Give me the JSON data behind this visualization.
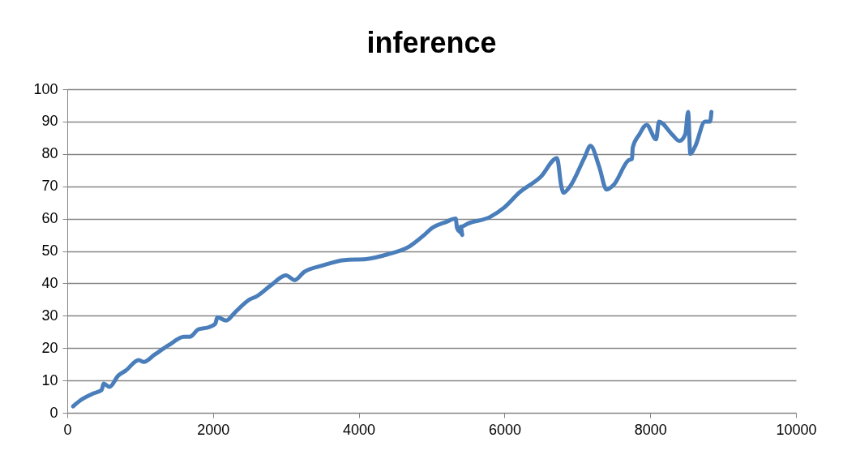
{
  "chart_data": {
    "type": "line",
    "title": "inference",
    "x": [
      80,
      190,
      360,
      470,
      500,
      580,
      700,
      800,
      980,
      1050,
      1200,
      1400,
      1600,
      1680,
      1800,
      1950,
      2030,
      2060,
      2180,
      2300,
      2500,
      2600,
      2800,
      3000,
      3120,
      3250,
      3500,
      3800,
      4100,
      4400,
      4700,
      4900,
      5000,
      5200,
      5330,
      5350,
      5420,
      5400,
      5500,
      5800,
      6000,
      6200,
      6500,
      6720,
      6780,
      6810,
      6900,
      7100,
      7180,
      7300,
      7400,
      7500,
      7700,
      7750,
      7760,
      7850,
      7950,
      8080,
      8120,
      8300,
      8400,
      8480,
      8520,
      8550,
      8620,
      8750,
      8820,
      8840
    ],
    "series": [
      {
        "color": "#4a7ebb",
        "values": [
          2,
          4,
          6,
          7,
          9,
          8,
          11.5,
          13,
          16.3,
          15.7,
          18,
          21,
          23.5,
          23.5,
          25.8,
          26.5,
          27.5,
          29.5,
          28.5,
          31,
          35,
          36,
          39.5,
          42.5,
          41,
          43.5,
          45.5,
          47.2,
          47.5,
          49,
          51.5,
          55,
          57,
          59,
          60,
          57,
          55,
          57.5,
          58.5,
          60.5,
          63.5,
          68,
          73,
          78.7,
          70,
          68,
          70,
          79,
          82.5,
          76,
          69,
          70.5,
          78,
          78.5,
          82,
          86,
          89,
          84.5,
          90,
          86,
          84,
          86,
          93,
          80,
          82.5,
          90,
          90,
          93
        ]
      }
    ],
    "xlim": [
      0,
      10000
    ],
    "xticks": [
      0,
      2000,
      4000,
      6000,
      8000,
      10000
    ],
    "ylim": [
      0,
      100
    ],
    "yticks": [
      0,
      10,
      20,
      30,
      40,
      50,
      60,
      70,
      80,
      90,
      100
    ],
    "grid": "y"
  }
}
